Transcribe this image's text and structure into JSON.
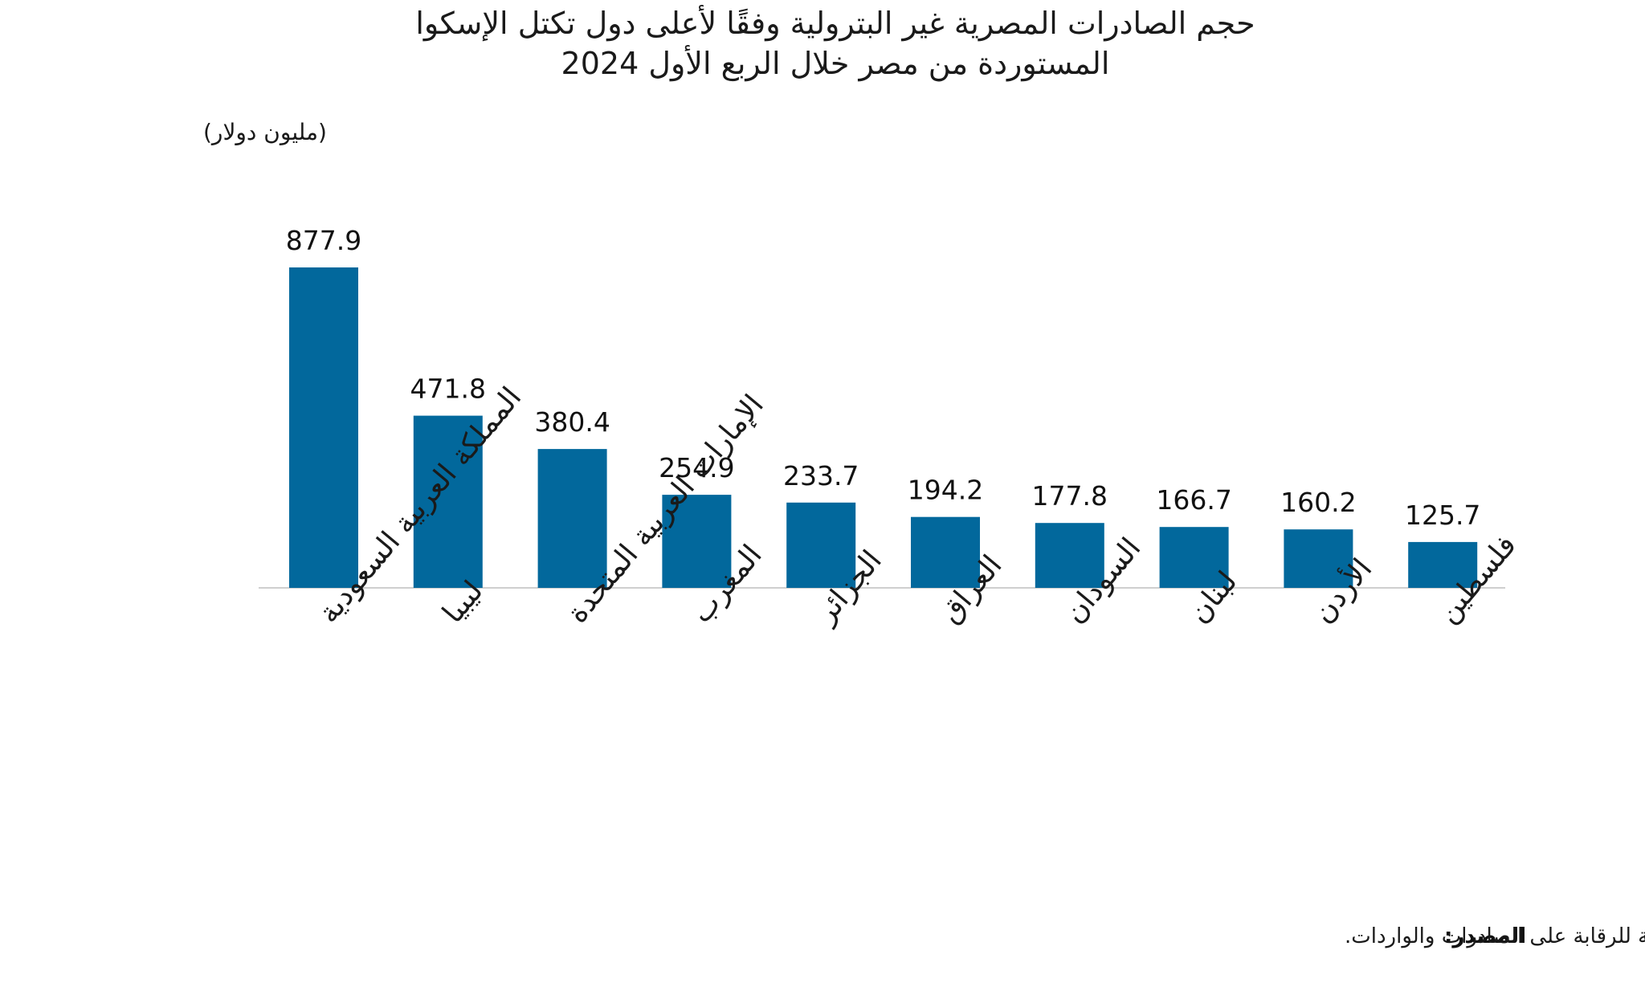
{
  "chart_data": {
    "type": "bar",
    "title": [
      "حجم الصادرات المصرية غير البترولية وفقًا لأعلى دول تكتل الإسكوا",
      "المستوردة من مصر خلال الربع الأول 2024"
    ],
    "ylabel": "(مليون دولار)",
    "categories": [
      "المملكة العربية السعودية",
      "ليبيا",
      "الإمارات العربية المتحدة",
      "المغرب",
      "الجزائر",
      "العراق",
      "السودان",
      "لبنان",
      "الأردن",
      "فلسطين"
    ],
    "values": [
      877.9,
      471.8,
      380.4,
      254.9,
      233.7,
      194.2,
      177.8,
      166.7,
      160.2,
      125.7
    ],
    "value_labels": [
      "877.9",
      "471.8",
      "380.4",
      "254.9",
      "233.7",
      "194.2",
      "177.8",
      "166.7",
      "160.2",
      "125.7"
    ],
    "ylim": [
      0,
      877.9
    ],
    "grid": false,
    "bar_color": "#02689c",
    "baseline_color": "#cfcfcf",
    "source_label": "المصدر:",
    "source_text": "محسوب من بيانات الهيئة العامة للرقابة على الصادرات والواردات."
  }
}
